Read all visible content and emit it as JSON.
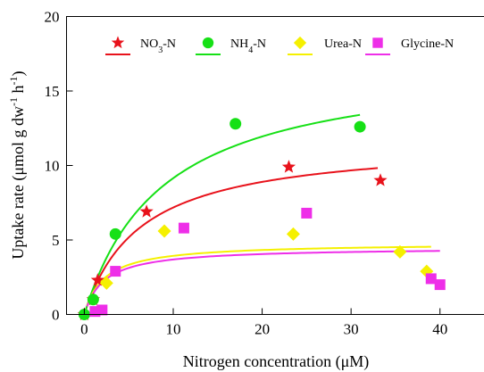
{
  "chart_data": {
    "type": "scatter",
    "xlabel_main": "Nitrogen concentration (",
    "xlabel_mu": "μ",
    "xlabel_end": "M)",
    "ylabel_main": "Uptake rate (",
    "ylabel_mu": "μ",
    "ylabel_mid1": "mol g dw",
    "ylabel_sup1": "-1",
    "ylabel_mid2": " h",
    "ylabel_sup2": "-1",
    "ylabel_end": ")",
    "xlim": [
      -2,
      45
    ],
    "ylim": [
      0,
      20
    ],
    "xticks": [
      0,
      10,
      20,
      30,
      40
    ],
    "yticks": [
      0,
      5,
      10,
      15,
      20
    ],
    "legend_position": "top",
    "series": [
      {
        "name": "NO3-N",
        "name_main": "NO",
        "name_sub": "3",
        "name_end": "-N",
        "color": "#e8121b",
        "marker": "star",
        "points": [
          [
            0,
            0
          ],
          [
            1,
            1.0
          ],
          [
            1.5,
            2.3
          ],
          [
            7,
            6.9
          ],
          [
            23,
            9.9
          ],
          [
            33.3,
            9.0
          ]
        ],
        "fit": {
          "vmax": 11.7,
          "km": 6.3,
          "x_start": 0,
          "x_end": 33
        }
      },
      {
        "name": "NH4-N",
        "name_main": "NH",
        "name_sub": "4",
        "name_end": "-N",
        "color": "#16e016",
        "marker": "circle",
        "points": [
          [
            0,
            0
          ],
          [
            1,
            1.0
          ],
          [
            3.5,
            5.4
          ],
          [
            17,
            12.8
          ],
          [
            31,
            12.6
          ]
        ],
        "fit": {
          "vmax": 17.2,
          "km": 8.8,
          "x_start": 0,
          "x_end": 31
        }
      },
      {
        "name": "Urea-N",
        "name_main": "Urea-N",
        "name_sub": "",
        "name_end": "",
        "color": "#f5f000",
        "marker": "diamond",
        "points": [
          [
            2.5,
            2.1
          ],
          [
            9,
            5.6
          ],
          [
            23.5,
            5.4
          ],
          [
            35.5,
            4.2
          ],
          [
            38.5,
            2.9
          ]
        ],
        "fit": {
          "vmax": 4.8,
          "km": 2.2,
          "x_start": 0.3,
          "x_end": 39
        }
      },
      {
        "name": "Glycine-N",
        "name_main": "Glycine-N",
        "name_sub": "",
        "name_end": "",
        "color": "#ee2ee8",
        "marker": "square",
        "points": [
          [
            1.2,
            0.2
          ],
          [
            2,
            0.3
          ],
          [
            3.5,
            2.9
          ],
          [
            11.2,
            5.8
          ],
          [
            25,
            6.8
          ],
          [
            39,
            2.4
          ],
          [
            40,
            2.0
          ]
        ],
        "fit": {
          "vmax": 4.5,
          "km": 2.2,
          "x_start": 0.3,
          "x_end": 40
        }
      }
    ]
  }
}
